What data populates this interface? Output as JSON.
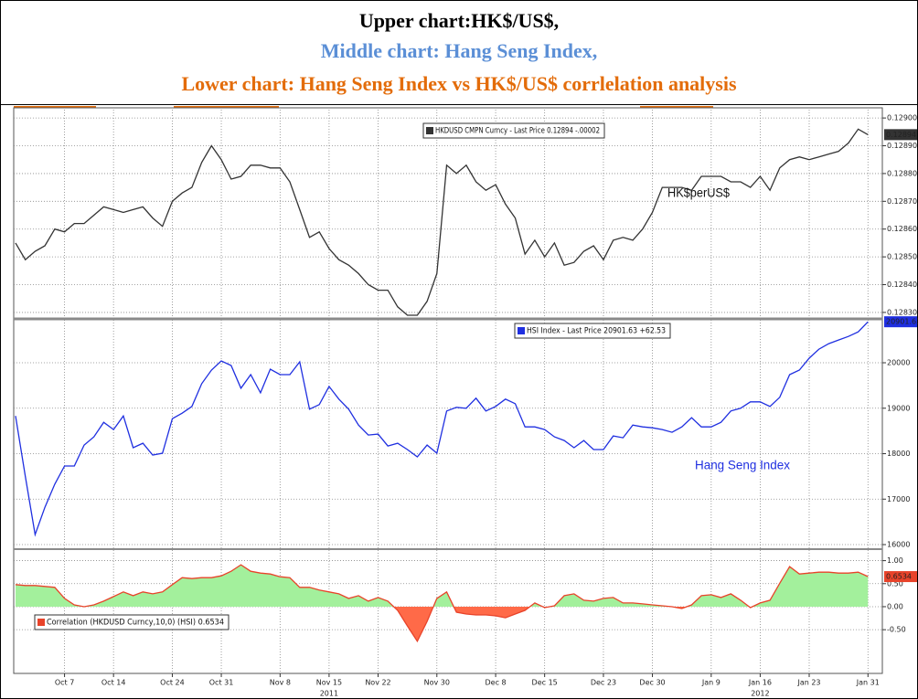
{
  "title_lines": [
    "Upper chart:HK$/US$,",
    "Middle chart: Hang Seng Index,",
    "Lower chart: Hang Seng Index vs HK$/US$ corrlelation analysis"
  ],
  "title_colors": [
    "#000000",
    "#5b8fd6",
    "#e36c0a"
  ],
  "chart_data": [
    {
      "type": "line",
      "grid": true,
      "annotation": "HK$perUS$",
      "x": [
        "2011-09-30",
        "2011-10-03",
        "2011-10-04",
        "2011-10-05",
        "2011-10-06",
        "2011-10-07",
        "2011-10-10",
        "2011-10-11",
        "2011-10-12",
        "2011-10-13",
        "2011-10-14",
        "2011-10-17",
        "2011-10-18",
        "2011-10-19",
        "2011-10-20",
        "2011-10-21",
        "2011-10-24",
        "2011-10-25",
        "2011-10-26",
        "2011-10-27",
        "2011-10-28",
        "2011-10-31",
        "2011-11-01",
        "2011-11-02",
        "2011-11-03",
        "2011-11-04",
        "2011-11-07",
        "2011-11-08",
        "2011-11-09",
        "2011-11-10",
        "2011-11-11",
        "2011-11-14",
        "2011-11-15",
        "2011-11-16",
        "2011-11-17",
        "2011-11-18",
        "2011-11-21",
        "2011-11-22",
        "2011-11-23",
        "2011-11-24",
        "2011-11-25",
        "2011-11-28",
        "2011-11-29",
        "2011-11-30",
        "2011-12-01",
        "2011-12-02",
        "2011-12-05",
        "2011-12-06",
        "2011-12-07",
        "2011-12-08",
        "2011-12-09",
        "2011-12-12",
        "2011-12-13",
        "2011-12-14",
        "2011-12-15",
        "2011-12-16",
        "2011-12-19",
        "2011-12-20",
        "2011-12-21",
        "2011-12-22",
        "2011-12-23",
        "2011-12-26",
        "2011-12-27",
        "2011-12-28",
        "2011-12-29",
        "2011-12-30",
        "2012-01-02",
        "2012-01-03",
        "2012-01-04",
        "2012-01-05",
        "2012-01-06",
        "2012-01-09",
        "2012-01-10",
        "2012-01-11",
        "2012-01-12",
        "2012-01-13",
        "2012-01-16",
        "2012-01-17",
        "2012-01-18",
        "2012-01-19",
        "2012-01-20",
        "2012-01-23",
        "2012-01-24",
        "2012-01-25",
        "2012-01-26",
        "2012-01-27",
        "2012-01-30",
        "2012-01-31"
      ],
      "xlim": [
        "2011-09-30",
        "2012-02-01"
      ],
      "series": [
        {
          "name": "HKDUSD CMPN Curncy - Last Price 0.12894 -.00002",
          "color": "#333333",
          "values": [
            0.12855,
            0.12849,
            0.12852,
            0.12854,
            0.1286,
            0.12859,
            0.12862,
            0.12862,
            0.12865,
            0.12868,
            0.12867,
            0.12866,
            0.12867,
            0.12868,
            0.12864,
            0.12861,
            0.1287,
            0.12873,
            0.12875,
            0.12884,
            0.1289,
            0.12885,
            0.12878,
            0.12879,
            0.12883,
            0.12883,
            0.12882,
            0.12882,
            0.12877,
            0.12867,
            0.12857,
            0.12859,
            0.12853,
            0.12849,
            0.12847,
            0.12844,
            0.1284,
            0.12838,
            0.12838,
            0.12832,
            0.12829,
            0.12829,
            0.12834,
            0.12844,
            0.12883,
            0.1288,
            0.12883,
            0.12877,
            0.12874,
            0.12876,
            0.12869,
            0.12864,
            0.12851,
            0.12856,
            0.1285,
            0.12855,
            0.12847,
            0.12848,
            0.12852,
            0.12854,
            0.12849,
            0.12856,
            0.12857,
            0.12856,
            0.1286,
            0.12866,
            0.12875,
            0.12875,
            0.12875,
            0.12874,
            0.12879,
            0.12879,
            0.12879,
            0.12877,
            0.12877,
            0.12875,
            0.12879,
            0.12874,
            0.12882,
            0.12885,
            0.12886,
            0.12885,
            0.12886,
            0.12887,
            0.12888,
            0.12891,
            0.12896,
            0.12894
          ]
        }
      ],
      "ylim": [
        0.12828,
        0.12903
      ],
      "yticks": [
        {
          "value": 0.1283,
          "label": "0.12830"
        },
        {
          "value": 0.1284,
          "label": "0.12840"
        },
        {
          "value": 0.1285,
          "label": "0.12850"
        },
        {
          "value": 0.1286,
          "label": "0.12860"
        },
        {
          "value": 0.1287,
          "label": "0.12870"
        },
        {
          "value": 0.1288,
          "label": "0.12880"
        },
        {
          "value": 0.1289,
          "label": "0.12890"
        },
        {
          "value": 0.129,
          "label": "0.12900"
        }
      ]
    },
    {
      "type": "line",
      "grid": true,
      "annotation": "Hang Seng Index",
      "x": [
        "2011-09-30",
        "2011-10-03",
        "2011-10-04",
        "2011-10-05",
        "2011-10-06",
        "2011-10-07",
        "2011-10-10",
        "2011-10-11",
        "2011-10-12",
        "2011-10-13",
        "2011-10-14",
        "2011-10-17",
        "2011-10-18",
        "2011-10-19",
        "2011-10-20",
        "2011-10-21",
        "2011-10-24",
        "2011-10-25",
        "2011-10-26",
        "2011-10-27",
        "2011-10-28",
        "2011-10-31",
        "2011-11-01",
        "2011-11-02",
        "2011-11-03",
        "2011-11-04",
        "2011-11-07",
        "2011-11-08",
        "2011-11-09",
        "2011-11-10",
        "2011-11-11",
        "2011-11-14",
        "2011-11-15",
        "2011-11-16",
        "2011-11-17",
        "2011-11-18",
        "2011-11-21",
        "2011-11-22",
        "2011-11-23",
        "2011-11-24",
        "2011-11-25",
        "2011-11-28",
        "2011-11-29",
        "2011-11-30",
        "2011-12-01",
        "2011-12-02",
        "2011-12-05",
        "2011-12-06",
        "2011-12-07",
        "2011-12-08",
        "2011-12-09",
        "2011-12-12",
        "2011-12-13",
        "2011-12-14",
        "2011-12-15",
        "2011-12-16",
        "2011-12-19",
        "2011-12-20",
        "2011-12-21",
        "2011-12-22",
        "2011-12-23",
        "2011-12-26",
        "2011-12-27",
        "2011-12-28",
        "2011-12-29",
        "2011-12-30",
        "2012-01-02",
        "2012-01-03",
        "2012-01-04",
        "2012-01-05",
        "2012-01-06",
        "2012-01-09",
        "2012-01-10",
        "2012-01-11",
        "2012-01-12",
        "2012-01-13",
        "2012-01-16",
        "2012-01-17",
        "2012-01-18",
        "2012-01-19",
        "2012-01-20",
        "2012-01-23",
        "2012-01-24",
        "2012-01-25",
        "2012-01-26",
        "2012-01-27",
        "2012-01-30",
        "2012-01-31"
      ],
      "xlim": [
        "2011-09-30",
        "2012-02-01"
      ],
      "series": [
        {
          "name": "HSI Index - Last Price 20901.63 +62.53",
          "color": "#1f2fe0",
          "values": [
            18830,
            17500,
            16220,
            16820,
            17330,
            17730,
            17730,
            18190,
            18370,
            18690,
            18530,
            18830,
            18130,
            18230,
            17970,
            18010,
            18770,
            18890,
            19040,
            19540,
            19840,
            20040,
            19940,
            19440,
            19740,
            19340,
            19860,
            19740,
            19740,
            20020,
            18980,
            19080,
            19480,
            19200,
            18980,
            18630,
            18410,
            18430,
            18170,
            18230,
            18090,
            17930,
            18190,
            18010,
            18940,
            19020,
            19000,
            19220,
            18940,
            19040,
            19200,
            19100,
            18590,
            18590,
            18530,
            18370,
            18290,
            18130,
            18290,
            18090,
            18090,
            18390,
            18350,
            18630,
            18590,
            18570,
            18530,
            18470,
            18590,
            18790,
            18590,
            18590,
            18690,
            18940,
            19000,
            19140,
            19140,
            19040,
            19240,
            19740,
            19840,
            20100,
            20300,
            20420,
            20500,
            20580,
            20680,
            20901.63
          ]
        }
      ],
      "ylim": [
        15920,
        20945
      ],
      "yticks": [
        16000,
        17000,
        18000,
        19000,
        20000
      ]
    },
    {
      "type": "area",
      "grid": true,
      "positive_color": "#a3f09c",
      "negative_color": "#ff6a48",
      "x": [
        "2011-09-30",
        "2011-10-03",
        "2011-10-04",
        "2011-10-05",
        "2011-10-06",
        "2011-10-07",
        "2011-10-10",
        "2011-10-11",
        "2011-10-12",
        "2011-10-13",
        "2011-10-14",
        "2011-10-17",
        "2011-10-18",
        "2011-10-19",
        "2011-10-20",
        "2011-10-21",
        "2011-10-24",
        "2011-10-25",
        "2011-10-26",
        "2011-10-27",
        "2011-10-28",
        "2011-10-31",
        "2011-11-01",
        "2011-11-02",
        "2011-11-03",
        "2011-11-04",
        "2011-11-07",
        "2011-11-08",
        "2011-11-09",
        "2011-11-10",
        "2011-11-11",
        "2011-11-14",
        "2011-11-15",
        "2011-11-16",
        "2011-11-17",
        "2011-11-18",
        "2011-11-21",
        "2011-11-22",
        "2011-11-23",
        "2011-11-24",
        "2011-11-25",
        "2011-11-28",
        "2011-11-29",
        "2011-11-30",
        "2011-12-01",
        "2011-12-02",
        "2011-12-05",
        "2011-12-06",
        "2011-12-07",
        "2011-12-08",
        "2011-12-09",
        "2011-12-12",
        "2011-12-13",
        "2011-12-14",
        "2011-12-15",
        "2011-12-16",
        "2011-12-19",
        "2011-12-20",
        "2011-12-21",
        "2011-12-22",
        "2011-12-23",
        "2011-12-26",
        "2011-12-27",
        "2011-12-28",
        "2011-12-29",
        "2011-12-30",
        "2012-01-02",
        "2012-01-03",
        "2012-01-04",
        "2012-01-05",
        "2012-01-06",
        "2012-01-09",
        "2012-01-10",
        "2012-01-11",
        "2012-01-12",
        "2012-01-13",
        "2012-01-16",
        "2012-01-17",
        "2012-01-18",
        "2012-01-19",
        "2012-01-20",
        "2012-01-23",
        "2012-01-24",
        "2012-01-25",
        "2012-01-26",
        "2012-01-27",
        "2012-01-30",
        "2012-01-31"
      ],
      "xlim": [
        "2011-09-30",
        "2012-02-01"
      ],
      "series": [
        {
          "name": "Correlation (HKDUSD Curncy,10,0) (HSI) 0.6534",
          "color": "#e8432a",
          "values": [
            0.48,
            0.46,
            0.46,
            0.44,
            0.42,
            0.18,
            0.04,
            0,
            0.04,
            0.12,
            0.22,
            0.32,
            0.24,
            0.32,
            0.28,
            0.32,
            0.48,
            0.63,
            0.61,
            0.63,
            0.63,
            0.67,
            0.77,
            0.91,
            0.77,
            0.73,
            0.71,
            0.65,
            0.63,
            0.42,
            0.42,
            0.36,
            0.32,
            0.28,
            0.18,
            0.24,
            0.12,
            0.2,
            0.12,
            -0.08,
            -0.42,
            -0.75,
            -0.32,
            0.18,
            0.32,
            -0.12,
            -0.16,
            -0.18,
            -0.18,
            -0.2,
            -0.24,
            -0.16,
            -0.08,
            0.08,
            -0.02,
            0.02,
            0.24,
            0.28,
            0.14,
            0.12,
            0.18,
            0.2,
            0.08,
            0.08,
            0.06,
            0.04,
            0.02,
            0,
            -0.04,
            0.04,
            0.24,
            0.26,
            0.2,
            0.28,
            0.14,
            -0.02,
            0.08,
            0.14,
            0.51,
            0.87,
            0.71,
            0.73,
            0.75,
            0.75,
            0.73,
            0.73,
            0.75,
            0.6534
          ]
        }
      ],
      "ylim": [
        -1.41,
        1.23
      ],
      "yticks": [
        {
          "value": -0.5,
          "label": "-0.50"
        },
        {
          "value": 0,
          "label": "0.00"
        },
        {
          "value": 0.5,
          "label": "0.50"
        },
        {
          "value": 1,
          "label": "1.00"
        }
      ],
      "xticks": [
        {
          "value": "2011-10-07",
          "label": "Oct 7"
        },
        {
          "value": "2011-10-14",
          "label": "Oct 14"
        },
        {
          "value": "2011-10-24",
          "label": "Oct 24"
        },
        {
          "value": "2011-10-31",
          "label": "Oct 31"
        },
        {
          "value": "2011-11-08",
          "label": "Nov 8"
        },
        {
          "value": "2011-11-15",
          "label": "Nov 15"
        },
        {
          "value": "2011-11-22",
          "label": "Nov 22"
        },
        {
          "value": "2011-11-30",
          "label": "Nov 30"
        },
        {
          "value": "2011-12-08",
          "label": "Dec 8"
        },
        {
          "value": "2011-12-15",
          "label": "Dec 15"
        },
        {
          "value": "2011-12-23",
          "label": "Dec 23"
        },
        {
          "value": "2011-12-30",
          "label": "Dec 30"
        },
        {
          "value": "2012-01-09",
          "label": "Jan 9"
        },
        {
          "value": "2012-01-16",
          "label": "Jan 16"
        },
        {
          "value": "2012-01-23",
          "label": "Jan 23"
        },
        {
          "value": "2012-01-31",
          "label": "Jan 31"
        }
      ],
      "year_labels": [
        {
          "value": "2011-11-15",
          "label": "2011"
        },
        {
          "value": "2012-01-16",
          "label": "2012"
        }
      ]
    }
  ]
}
